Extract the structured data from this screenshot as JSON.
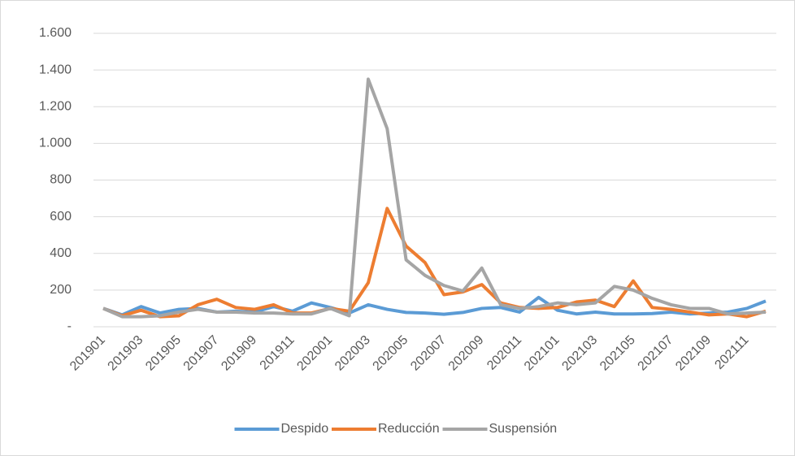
{
  "chart_data": {
    "type": "line",
    "categories": [
      "201901",
      null,
      "201903",
      null,
      "201905",
      null,
      "201907",
      null,
      "201909",
      null,
      "201911",
      null,
      "202001",
      null,
      "202003",
      null,
      "202005",
      null,
      "202007",
      null,
      "202009",
      null,
      "202011",
      null,
      "202101",
      null,
      "202103",
      null,
      "202105",
      null,
      "202107",
      null,
      "202109",
      null,
      "202111",
      null
    ],
    "series": [
      {
        "name": "Despido",
        "color": "#5b9bd5",
        "values": [
          100,
          65,
          110,
          75,
          95,
          100,
          80,
          85,
          80,
          110,
          85,
          130,
          105,
          75,
          120,
          95,
          78,
          75,
          68,
          78,
          100,
          105,
          80,
          160,
          90,
          70,
          80,
          70,
          70,
          72,
          80,
          70,
          75,
          80,
          100,
          140
        ]
      },
      {
        "name": "Reducción",
        "color": "#ed7d31",
        "values": [
          100,
          60,
          90,
          55,
          60,
          120,
          150,
          105,
          95,
          120,
          75,
          75,
          100,
          85,
          240,
          645,
          440,
          350,
          175,
          190,
          230,
          130,
          105,
          100,
          105,
          135,
          145,
          110,
          250,
          105,
          95,
          80,
          65,
          70,
          55,
          85
        ]
      },
      {
        "name": "Suspensión",
        "color": "#a5a5a5",
        "values": [
          100,
          55,
          55,
          60,
          80,
          95,
          80,
          80,
          75,
          75,
          70,
          70,
          100,
          60,
          1350,
          1080,
          365,
          280,
          225,
          195,
          320,
          120,
          100,
          110,
          130,
          120,
          130,
          220,
          200,
          155,
          120,
          100,
          100,
          70,
          75,
          80
        ]
      }
    ],
    "ylim": [
      0,
      1600
    ],
    "yticks": [
      {
        "value": 0,
        "label": "-"
      },
      200,
      400,
      600,
      800,
      {
        "value": 1000,
        "label": "1.000"
      },
      {
        "value": 1200,
        "label": "1.200"
      },
      {
        "value": 1400,
        "label": "1.400"
      },
      {
        "value": 1600,
        "label": "1.600"
      }
    ],
    "grid": true,
    "legend": "bottom"
  }
}
